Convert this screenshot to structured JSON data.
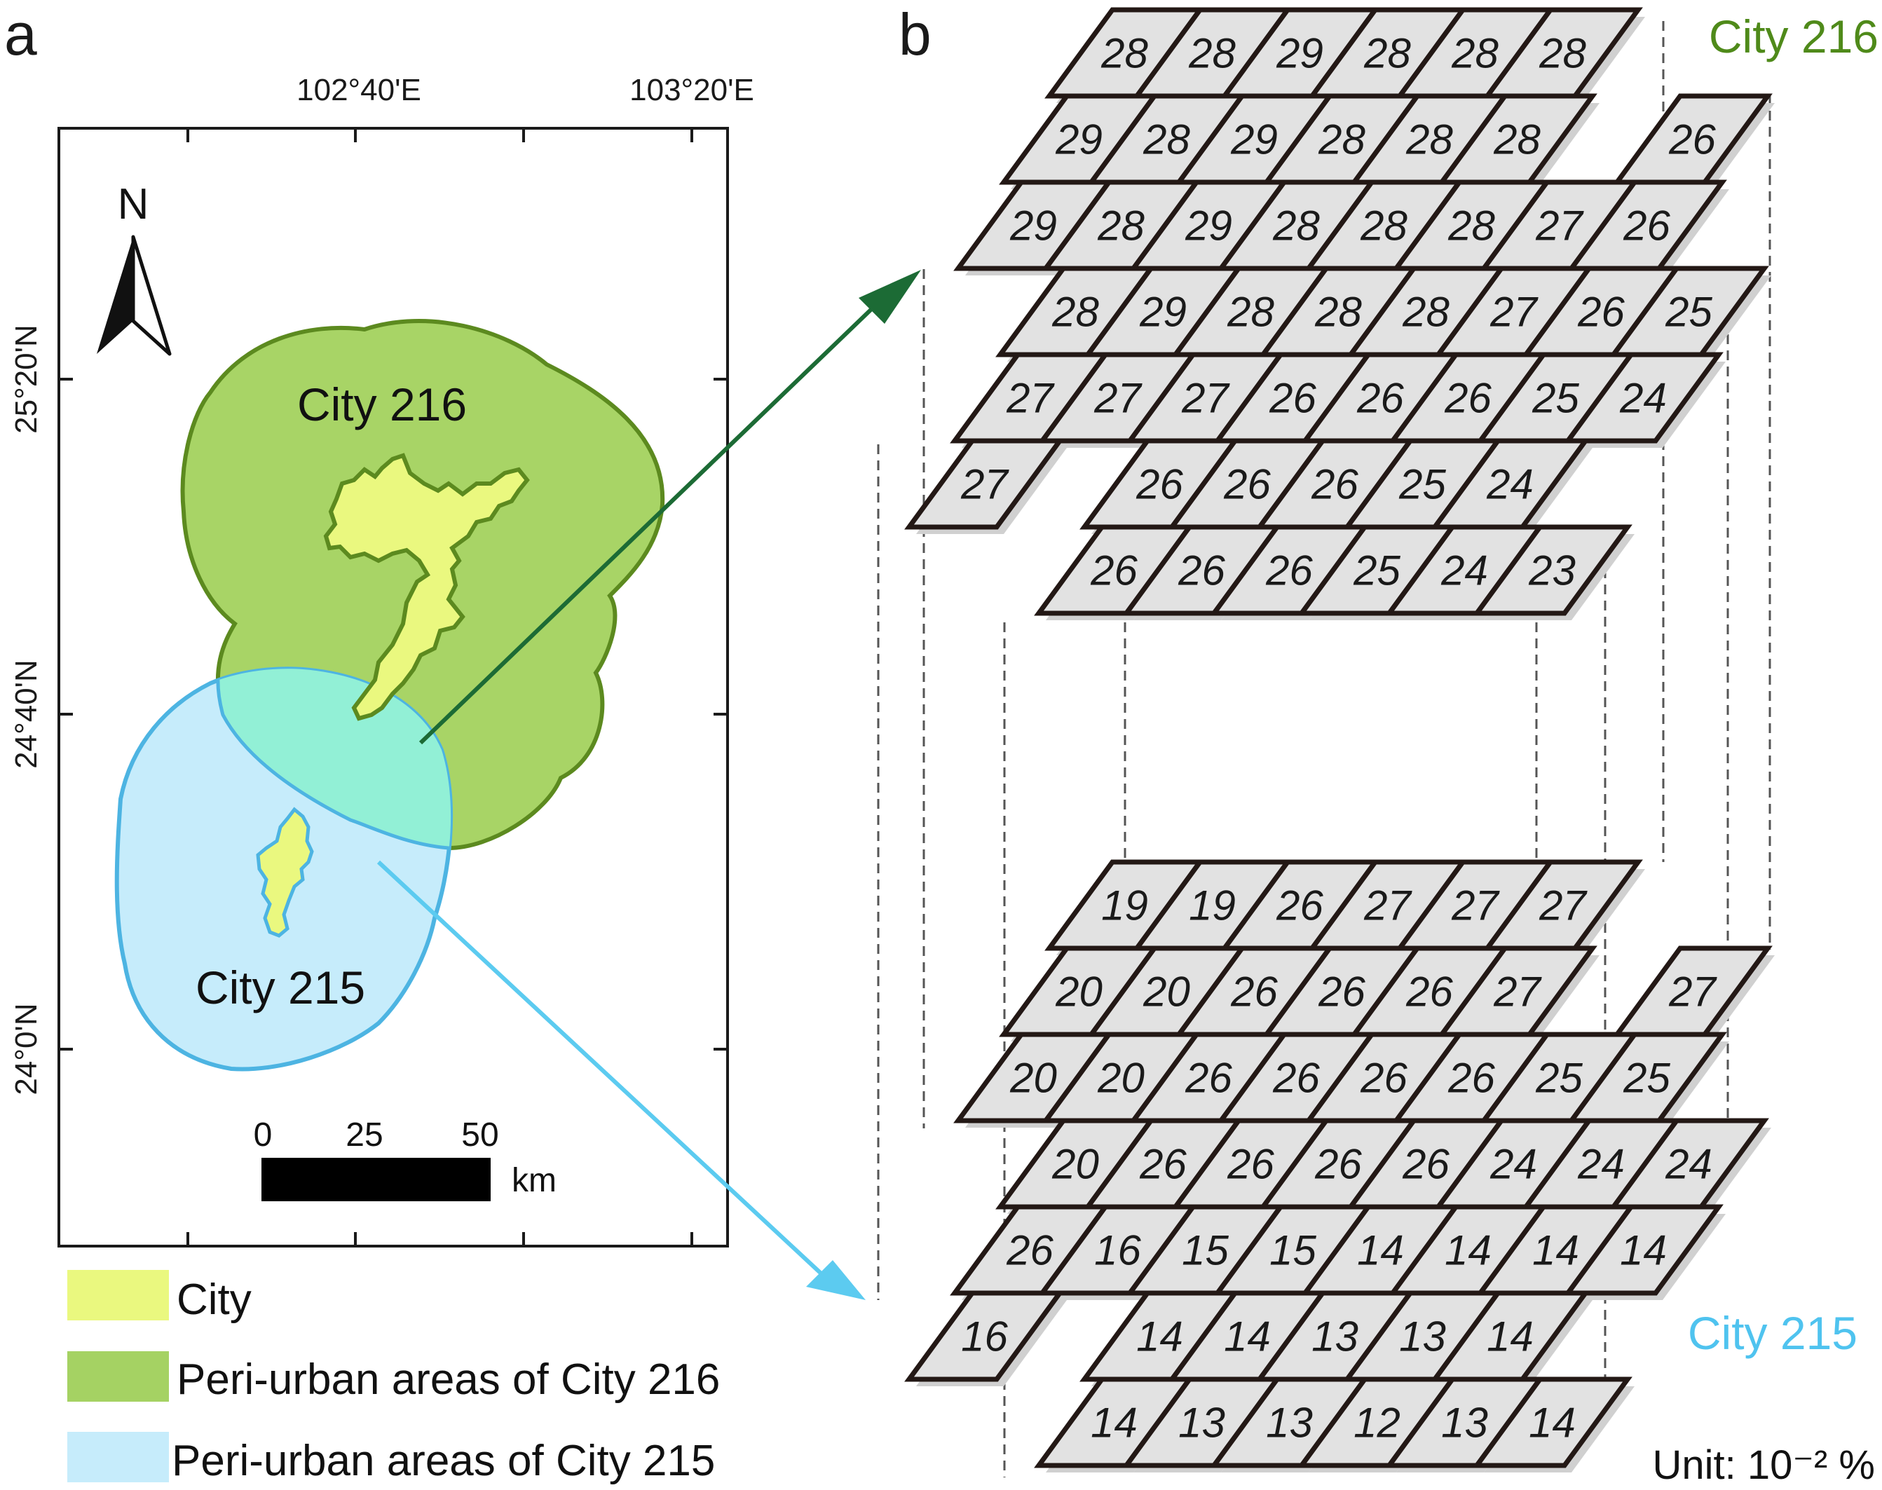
{
  "panel_a": {
    "letter": "a",
    "lon_ticks": [
      "102°40'E",
      "103°20'E"
    ],
    "lat_ticks": [
      "25°20'N",
      "24°40'N",
      "24°0'N"
    ],
    "north_label": "N",
    "labels": {
      "city216": "City 216",
      "city215": "City 215"
    },
    "scale": {
      "t0": "0",
      "t25": "25",
      "t50": "50",
      "unit": "km"
    },
    "legend": [
      {
        "label": "City",
        "color": "#eaf87f"
      },
      {
        "label": "Peri-urban areas of City 216",
        "color": "#a5d263"
      },
      {
        "label": "Peri-urban areas of City 215",
        "color": "#c6ecfb"
      }
    ],
    "colors": {
      "city_fill": "#eaf87f",
      "city216_fill": "#a8d466",
      "city216_stroke": "#5c8a1f",
      "city215_fill": "#c6ecfb",
      "city215_stroke": "#4db4e2",
      "overlap_fill": "#92f0d6",
      "arrow216": "#1c6b35",
      "arrow215": "#5ccbf0"
    }
  },
  "panel_b": {
    "letter": "b",
    "city216_title": "City 216",
    "city215_title": "City 215",
    "title216_color": "#4f8a1a",
    "title215_color": "#4fc3ef",
    "unit_label": "Unit: 10⁻² %",
    "cell_fill": "#e2e2e2",
    "cell_stroke": "#231815",
    "city216_rows": [
      [
        {
          "v": "28",
          "c": 0
        },
        {
          "v": "28",
          "c": 1
        },
        {
          "v": "29",
          "c": 2
        },
        {
          "v": "28",
          "c": 3
        },
        {
          "v": "28",
          "c": 4
        },
        {
          "v": "28",
          "c": 5
        }
      ],
      [
        {
          "v": "29",
          "c": 0
        },
        {
          "v": "28",
          "c": 1
        },
        {
          "v": "29",
          "c": 2
        },
        {
          "v": "28",
          "c": 3
        },
        {
          "v": "28",
          "c": 4
        },
        {
          "v": "28",
          "c": 5
        },
        {
          "v": "26",
          "c": 7
        }
      ],
      [
        {
          "v": "29",
          "c": 0
        },
        {
          "v": "28",
          "c": 1
        },
        {
          "v": "29",
          "c": 2
        },
        {
          "v": "28",
          "c": 3
        },
        {
          "v": "28",
          "c": 4
        },
        {
          "v": "28",
          "c": 5
        },
        {
          "v": "27",
          "c": 6
        },
        {
          "v": "26",
          "c": 7
        }
      ],
      [
        {
          "v": "28",
          "c": 1
        },
        {
          "v": "29",
          "c": 2
        },
        {
          "v": "28",
          "c": 3
        },
        {
          "v": "28",
          "c": 4
        },
        {
          "v": "28",
          "c": 5
        },
        {
          "v": "27",
          "c": 6
        },
        {
          "v": "26",
          "c": 7
        },
        {
          "v": "25",
          "c": 8
        }
      ],
      [
        {
          "v": "27",
          "c": 1
        },
        {
          "v": "27",
          "c": 2
        },
        {
          "v": "27",
          "c": 3
        },
        {
          "v": "26",
          "c": 4
        },
        {
          "v": "26",
          "c": 5
        },
        {
          "v": "26",
          "c": 6
        },
        {
          "v": "25",
          "c": 7
        },
        {
          "v": "24",
          "c": 8
        }
      ],
      [
        {
          "v": "27",
          "c": 1
        },
        {
          "v": "26",
          "c": 3
        },
        {
          "v": "26",
          "c": 4
        },
        {
          "v": "26",
          "c": 5
        },
        {
          "v": "25",
          "c": 6
        },
        {
          "v": "24",
          "c": 7
        }
      ],
      [
        {
          "v": "26",
          "c": 3
        },
        {
          "v": "26",
          "c": 4
        },
        {
          "v": "26",
          "c": 5
        },
        {
          "v": "25",
          "c": 6
        },
        {
          "v": "24",
          "c": 7
        },
        {
          "v": "23",
          "c": 8
        }
      ]
    ],
    "city215_rows": [
      [
        {
          "v": "19",
          "c": 0
        },
        {
          "v": "19",
          "c": 1
        },
        {
          "v": "26",
          "c": 2
        },
        {
          "v": "27",
          "c": 3
        },
        {
          "v": "27",
          "c": 4
        },
        {
          "v": "27",
          "c": 5
        }
      ],
      [
        {
          "v": "20",
          "c": 0
        },
        {
          "v": "20",
          "c": 1
        },
        {
          "v": "26",
          "c": 2
        },
        {
          "v": "26",
          "c": 3
        },
        {
          "v": "26",
          "c": 4
        },
        {
          "v": "27",
          "c": 5
        },
        {
          "v": "27",
          "c": 7
        }
      ],
      [
        {
          "v": "20",
          "c": 0
        },
        {
          "v": "20",
          "c": 1
        },
        {
          "v": "26",
          "c": 2
        },
        {
          "v": "26",
          "c": 3
        },
        {
          "v": "26",
          "c": 4
        },
        {
          "v": "26",
          "c": 5
        },
        {
          "v": "25",
          "c": 6
        },
        {
          "v": "25",
          "c": 7
        }
      ],
      [
        {
          "v": "20",
          "c": 1
        },
        {
          "v": "26",
          "c": 2
        },
        {
          "v": "26",
          "c": 3
        },
        {
          "v": "26",
          "c": 4
        },
        {
          "v": "26",
          "c": 5
        },
        {
          "v": "24",
          "c": 6
        },
        {
          "v": "24",
          "c": 7
        },
        {
          "v": "24",
          "c": 8
        }
      ],
      [
        {
          "v": "26",
          "c": 1
        },
        {
          "v": "16",
          "c": 2
        },
        {
          "v": "15",
          "c": 3
        },
        {
          "v": "15",
          "c": 4
        },
        {
          "v": "14",
          "c": 5
        },
        {
          "v": "14",
          "c": 6
        },
        {
          "v": "14",
          "c": 7
        },
        {
          "v": "14",
          "c": 8
        }
      ],
      [
        {
          "v": "16",
          "c": 1
        },
        {
          "v": "14",
          "c": 3
        },
        {
          "v": "14",
          "c": 4
        },
        {
          "v": "13",
          "c": 5
        },
        {
          "v": "13",
          "c": 6
        },
        {
          "v": "14",
          "c": 7
        }
      ],
      [
        {
          "v": "14",
          "c": 3
        },
        {
          "v": "13",
          "c": 4
        },
        {
          "v": "13",
          "c": 5
        },
        {
          "v": "12",
          "c": 6
        },
        {
          "v": "13",
          "c": 7
        },
        {
          "v": "14",
          "c": 8
        }
      ]
    ]
  }
}
